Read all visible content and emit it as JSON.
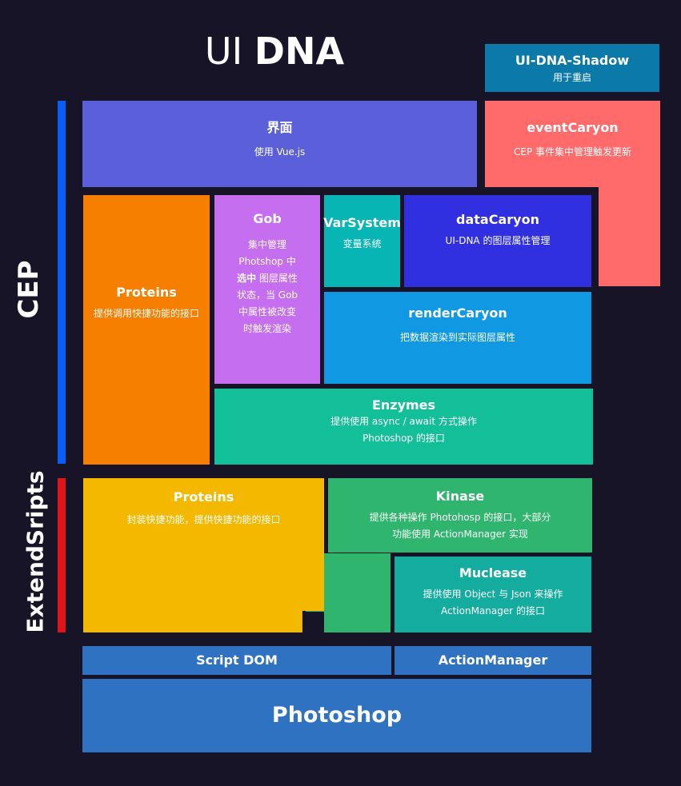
{
  "title": {
    "part1": "UI",
    "part2": "DNA"
  },
  "layers": {
    "cep": {
      "label": "CEP",
      "color": "#0a5ef5"
    },
    "extendscript": {
      "label": "ExtendSripts",
      "color": "#e0141b"
    }
  },
  "blocks": {
    "shadow": {
      "title": "UI-DNA-Shadow",
      "desc": "用于重启",
      "color": "#0b7aa8"
    },
    "ui": {
      "title": "界面",
      "desc": "使用 Vue.js",
      "color": "#5b5fd9"
    },
    "event": {
      "title": "eventCaryon",
      "desc": "CEP 事件集中管理触发更新",
      "color": "#ff6b6b"
    },
    "proteins_cep": {
      "title": "Proteins",
      "desc": "提供调用快捷功能的接口",
      "color": "#f77f00"
    },
    "gob": {
      "title": "Gob",
      "lines": [
        "集中管理",
        "Photshop 中",
        "选中",
        " 图层属性",
        "状态，当 Gob",
        "中属性被改变",
        "时触发渲染"
      ],
      "color": "#c66ef0"
    },
    "varsystem": {
      "title": "VarSystem",
      "desc": "变量系统",
      "color": "#07b5b5"
    },
    "data": {
      "title": "dataCaryon",
      "desc": "UI-DNA 的图层属性管理",
      "color": "#3030e0"
    },
    "render": {
      "title": "renderCaryon",
      "desc": "把数据渲染到实际图层属性",
      "color": "#1098e3"
    },
    "enzymes": {
      "title": "Enzymes",
      "desc1": "提供使用 async / await 方式操作",
      "desc2": "Photoshop 的接口",
      "color": "#13bf98"
    },
    "proteins_es": {
      "title": "Proteins",
      "desc": "封装快捷功能，提供快捷功能的接口",
      "color": "#f5b800"
    },
    "kinase": {
      "title": "Kinase",
      "desc1": "提供各种操作 Photohosp 的接口，大部分",
      "desc2": "功能使用 ActionManager  实现",
      "color": "#2fb56e"
    },
    "muclease": {
      "title": "Muclease",
      "desc1": "提供使用 Object 与 Json 来操作",
      "desc2": "ActionManager 的接口",
      "color": "#14ac9f"
    },
    "scriptdom": {
      "title": "Script DOM",
      "color": "#2f72c1"
    },
    "actionmanager": {
      "title": "ActionManager",
      "color": "#2f72c1"
    },
    "photoshop": {
      "title": "Photoshop",
      "color": "#2f72c1"
    }
  }
}
